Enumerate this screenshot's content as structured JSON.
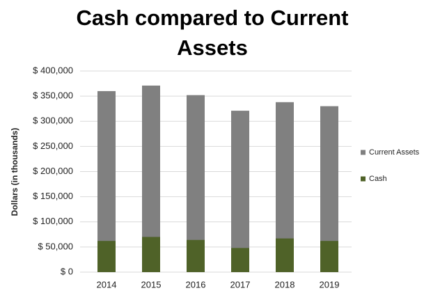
{
  "chart_data": {
    "type": "bar",
    "title": "Cash compared to Current Assets",
    "y_label": "Dollars (in thousands)",
    "categories": [
      "2014",
      "2015",
      "2016",
      "2017",
      "2018",
      "2019"
    ],
    "series": [
      {
        "name": "Current Assets",
        "color": "#808080",
        "values": [
          360000,
          371000,
          352000,
          321000,
          338000,
          330000
        ]
      },
      {
        "name": "Cash",
        "color": "#4f6228",
        "values": [
          62000,
          70000,
          64000,
          48000,
          67000,
          62000
        ]
      }
    ],
    "ylim": [
      0,
      400000
    ],
    "yticks": [
      {
        "value": 0,
        "label": "$ 0"
      },
      {
        "value": 50000,
        "label": "$ 50,000"
      },
      {
        "value": 100000,
        "label": "$ 100,000"
      },
      {
        "value": 150000,
        "label": "$ 150,000"
      },
      {
        "value": 200000,
        "label": "$ 200,000"
      },
      {
        "value": 250000,
        "label": "$ 250,000"
      },
      {
        "value": 300000,
        "label": "$ 300,000"
      },
      {
        "value": 350000,
        "label": "$ 350,000"
      },
      {
        "value": 400000,
        "label": "$ 400,000"
      }
    ],
    "grid": true,
    "legend": "right"
  }
}
